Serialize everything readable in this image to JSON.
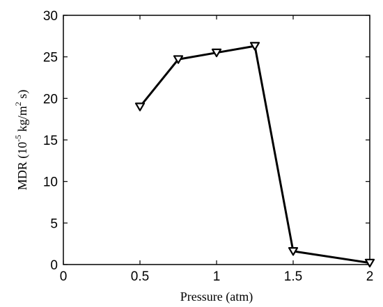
{
  "chart_data": {
    "type": "line",
    "xlabel": "Pressure (atm)",
    "ylabel": {
      "prefix": "MDR (10",
      "exp": "-5",
      "middle": " kg/m",
      "exp2": "2",
      "suffix": " s)"
    },
    "xlim": [
      0,
      2
    ],
    "ylim": [
      0,
      30
    ],
    "xticks": [
      0,
      0.5,
      1,
      1.5,
      2
    ],
    "xtick_labels": [
      "0",
      "0.5",
      "1",
      "1.5",
      "2"
    ],
    "yticks": [
      0,
      5,
      10,
      15,
      20,
      25,
      30
    ],
    "ytick_labels": [
      "0",
      "5",
      "10",
      "15",
      "20",
      "25",
      "30"
    ],
    "grid": false,
    "marker": "triangle-down",
    "line_color": "#000000",
    "series": [
      {
        "x": [
          0.5,
          0.75,
          1.0,
          1.25,
          1.5,
          2.0
        ],
        "y": [
          19.0,
          24.7,
          25.5,
          26.3,
          1.6,
          0.2
        ]
      }
    ]
  }
}
